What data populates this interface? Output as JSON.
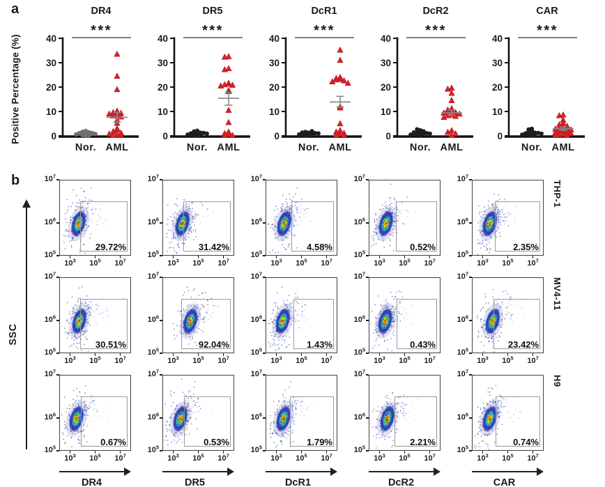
{
  "chart_data": [
    {
      "type": "scatter",
      "panel": "a",
      "ylabel": "Positive Percentage (%)",
      "ylim": [
        0,
        40
      ],
      "yticks": [
        0,
        10,
        20,
        30,
        40
      ],
      "categories": [
        "Nor.",
        "AML"
      ],
      "significance": "***",
      "aml_color": "#d7222a",
      "error_color": "#8a8a8a",
      "plots": [
        {
          "title": "DR4",
          "nor_color": "#6f6f6f",
          "nor": [
            0.1,
            0.3,
            0.5,
            0.7,
            0.9,
            1.1,
            1.4,
            1.7,
            2.0,
            1.2,
            0.6,
            0.2,
            1.5,
            0.8
          ],
          "aml": [
            33.5,
            24.5,
            19.0,
            10.2,
            9.6,
            9.3,
            9.0,
            8.6,
            8.2,
            7.8,
            6.5,
            5.2,
            3.0,
            2.4,
            1.8,
            1.2,
            0.8,
            0.5,
            0.3,
            0.2
          ],
          "mean": 7.6,
          "sem": [
            5.6,
            9.6
          ]
        },
        {
          "title": "DR5",
          "nor_color": "#1d1d1d",
          "nor": [
            0.1,
            0.2,
            0.4,
            0.6,
            0.8,
            1.0,
            1.2,
            1.5,
            1.8,
            2.1,
            0.5,
            0.9,
            1.3,
            0.3
          ],
          "aml": [
            32.5,
            32.3,
            27.6,
            27.2,
            21.6,
            21.3,
            21.0,
            20.8,
            20.5,
            18.6,
            18.2,
            10.5,
            5.5,
            1.6,
            1.0,
            0.7,
            0.4,
            0.2
          ],
          "mean": 15.4,
          "sem": [
            12.6,
            17.7
          ]
        },
        {
          "title": "DcR1",
          "nor_color": "#1d1d1d",
          "nor": [
            0.1,
            0.2,
            0.4,
            0.5,
            0.7,
            0.9,
            1.1,
            1.3,
            1.6,
            1.9,
            0.6,
            1.0,
            0.3,
            1.4
          ],
          "aml": [
            35.2,
            31.0,
            24.0,
            23.6,
            23.2,
            23.0,
            22.6,
            22.2,
            21.6,
            12.0,
            11.5,
            5.0,
            2.2,
            1.6,
            1.1,
            0.7,
            0.4,
            0.2
          ],
          "mean": 13.9,
          "sem": [
            11.8,
            16.2
          ]
        },
        {
          "title": "DcR2",
          "nor_color": "#1d1d1d",
          "nor": [
            0.2,
            0.4,
            0.6,
            0.8,
            1.0,
            1.3,
            1.6,
            1.9,
            2.3,
            2.7,
            1.1,
            0.5,
            1.4,
            0.9
          ],
          "aml": [
            19.6,
            19.2,
            17.5,
            14.5,
            11.2,
            10.6,
            10.2,
            10.0,
            9.6,
            9.4,
            9.0,
            8.6,
            8.3,
            8.0,
            7.6,
            2.2,
            1.5,
            0.9,
            0.3
          ],
          "mean": 9.4,
          "sem": [
            8.4,
            10.5
          ]
        },
        {
          "title": "CAR",
          "nor_color": "#1d1d1d",
          "nor": [
            0.2,
            0.4,
            0.6,
            0.8,
            1.0,
            1.2,
            1.5,
            1.8,
            2.2,
            2.6,
            0.5,
            0.9,
            1.3,
            2.9
          ],
          "aml": [
            8.6,
            8.3,
            6.5,
            5.2,
            4.6,
            4.0,
            3.6,
            3.3,
            3.0,
            2.8,
            2.5,
            2.2,
            1.9,
            1.6,
            1.3,
            1.0,
            0.7,
            0.5,
            0.3,
            0.2
          ],
          "mean": 2.9,
          "sem": [
            2.2,
            3.6
          ]
        }
      ]
    },
    {
      "type": "scatter",
      "subtype": "flow_cytometry_density",
      "panel": "b",
      "ylabel": "SSC",
      "col_labels": [
        "DR4",
        "DR5",
        "DcR1",
        "DcR2",
        "CAR"
      ],
      "row_labels": [
        "THP-1",
        "MV4-11",
        "H9"
      ],
      "ytick_exponents": [
        7,
        6,
        5
      ],
      "xtick_exponents": [
        3,
        5,
        7
      ],
      "cells": [
        [
          {
            "pct": "29.72%",
            "gate_left": 29,
            "cloud_x": 26
          },
          {
            "pct": "31.42%",
            "gate_left": 29,
            "cloud_x": 27
          },
          {
            "pct": "4.58%",
            "gate_left": 36,
            "cloud_x": 25
          },
          {
            "pct": "0.52%",
            "gate_left": 38,
            "cloud_x": 23
          },
          {
            "pct": "2.35%",
            "gate_left": 32,
            "cloud_x": 24
          }
        ],
        [
          {
            "pct": "30.51%",
            "gate_left": 29,
            "cloud_x": 27
          },
          {
            "pct": "92.04%",
            "gate_left": 26,
            "cloud_x": 38
          },
          {
            "pct": "1.43%",
            "gate_left": 39,
            "cloud_x": 23
          },
          {
            "pct": "0.43%",
            "gate_left": 39,
            "cloud_x": 22
          },
          {
            "pct": "23.42%",
            "gate_left": 30,
            "cloud_x": 28
          }
        ],
        [
          {
            "pct": "0.67%",
            "gate_left": 30,
            "cloud_x": 23
          },
          {
            "pct": "0.53%",
            "gate_left": 30,
            "cloud_x": 24
          },
          {
            "pct": "1.79%",
            "gate_left": 34,
            "cloud_x": 24
          },
          {
            "pct": "2.21%",
            "gate_left": 36,
            "cloud_x": 25
          },
          {
            "pct": "0.74%",
            "gate_left": 33,
            "cloud_x": 24
          }
        ]
      ]
    }
  ]
}
